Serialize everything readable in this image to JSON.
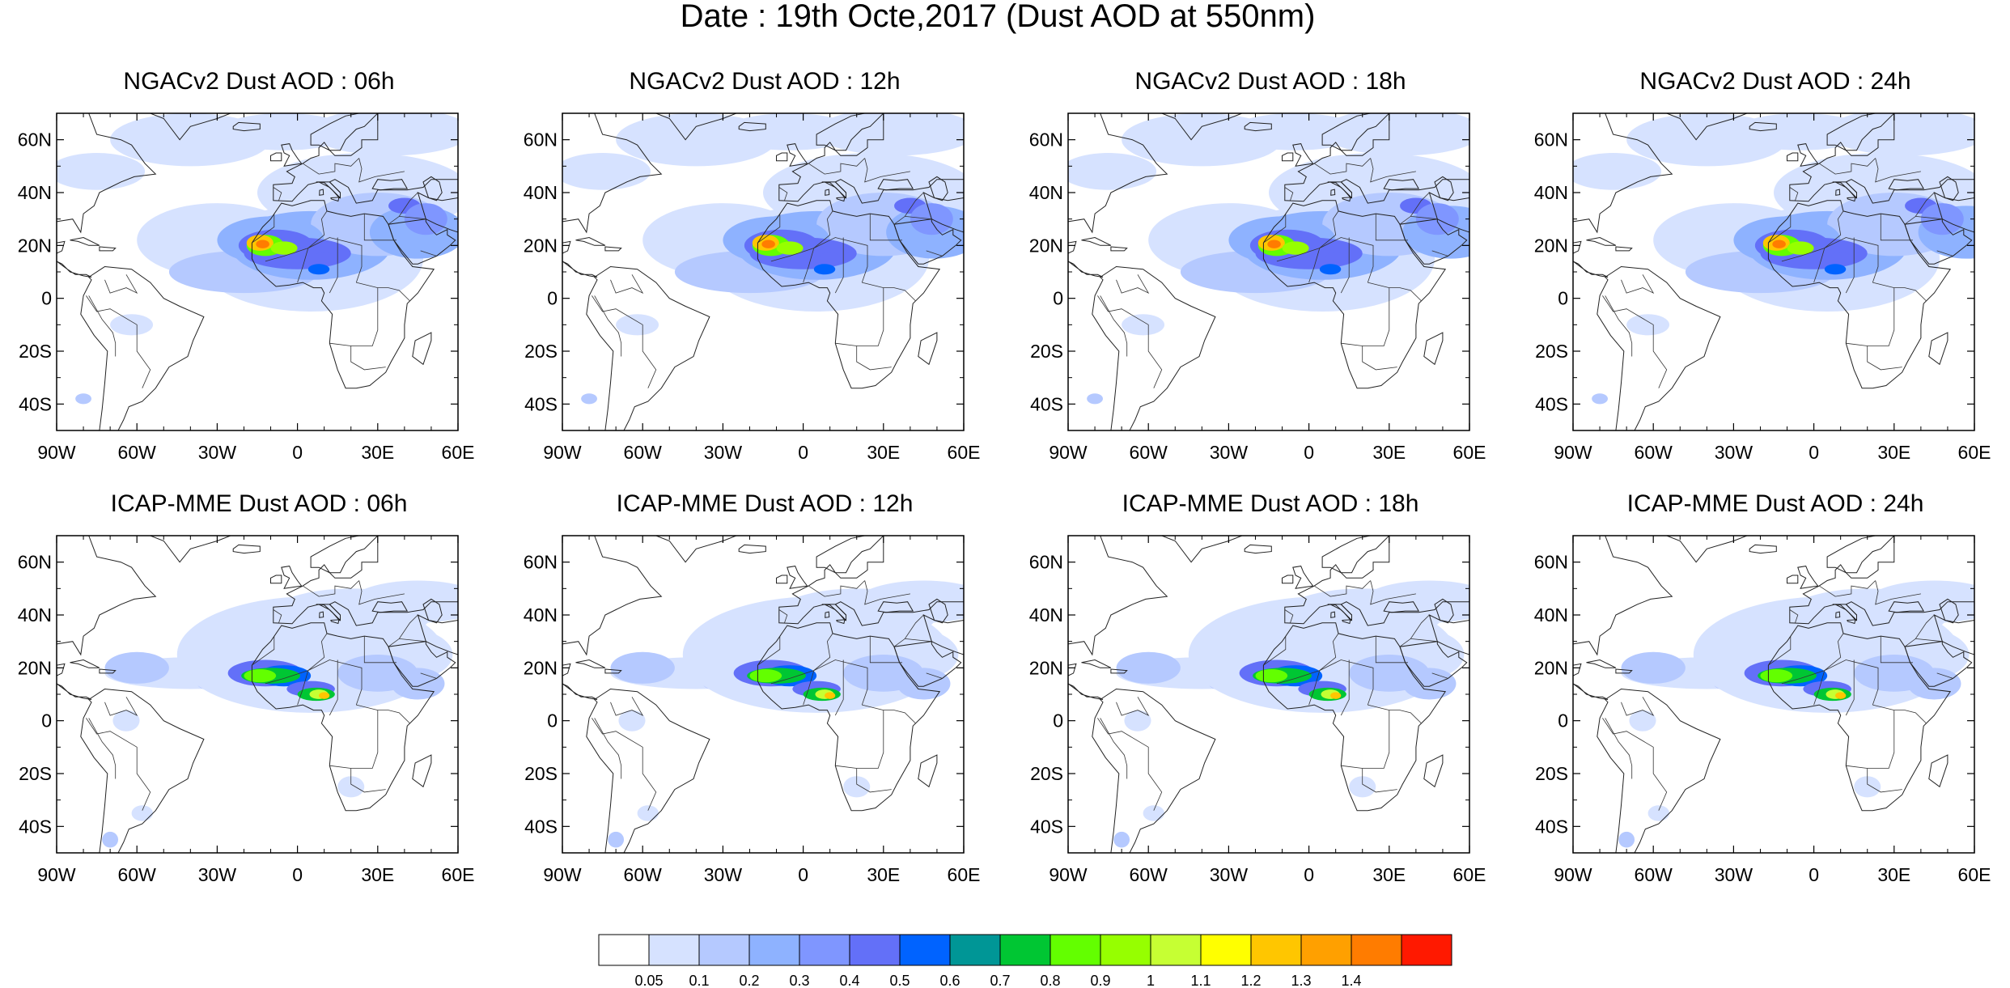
{
  "title": "Date : 19th Octe,2017 (Dust AOD at 550nm)",
  "panels": [
    {
      "title": "NGACv2 Dust AOD : 06h",
      "model": "NGACv2",
      "lead": "06h"
    },
    {
      "title": "NGACv2 Dust AOD : 12h",
      "model": "NGACv2",
      "lead": "12h"
    },
    {
      "title": "NGACv2 Dust AOD : 18h",
      "model": "NGACv2",
      "lead": "18h"
    },
    {
      "title": "NGACv2 Dust AOD : 24h",
      "model": "NGACv2",
      "lead": "24h"
    },
    {
      "title": "ICAP-MME Dust AOD : 06h",
      "model": "ICAP-MME",
      "lead": "06h"
    },
    {
      "title": "ICAP-MME Dust AOD : 12h",
      "model": "ICAP-MME",
      "lead": "12h"
    },
    {
      "title": "ICAP-MME Dust AOD : 18h",
      "model": "ICAP-MME",
      "lead": "18h"
    },
    {
      "title": "ICAP-MME Dust AOD : 24h",
      "model": "ICAP-MME",
      "lead": "24h"
    }
  ],
  "map_extent": {
    "lon": [
      -90,
      60
    ],
    "lat": [
      -50,
      70
    ]
  },
  "lon_ticks": [
    "90W",
    "60W",
    "30W",
    "0",
    "30E",
    "60E"
  ],
  "lat_ticks": [
    "60N",
    "40N",
    "20N",
    "0",
    "20S",
    "40S"
  ],
  "colorbar": {
    "colors": [
      "#ffffff",
      "#d6e2ff",
      "#b5c9ff",
      "#8eb2ff",
      "#7f96ff",
      "#6370f8",
      "#0063ff",
      "#009696",
      "#00c633",
      "#63ff00",
      "#96ff00",
      "#c6ff33",
      "#ffff00",
      "#ffc600",
      "#ffa000",
      "#ff7c00",
      "#ff1900"
    ],
    "labels": [
      "0.05",
      "0.1",
      "0.2",
      "0.3",
      "0.4",
      "0.5",
      "0.6",
      "0.7",
      "0.8",
      "0.9",
      "1",
      "1.1",
      "1.2",
      "1.3",
      "1.4"
    ]
  }
}
